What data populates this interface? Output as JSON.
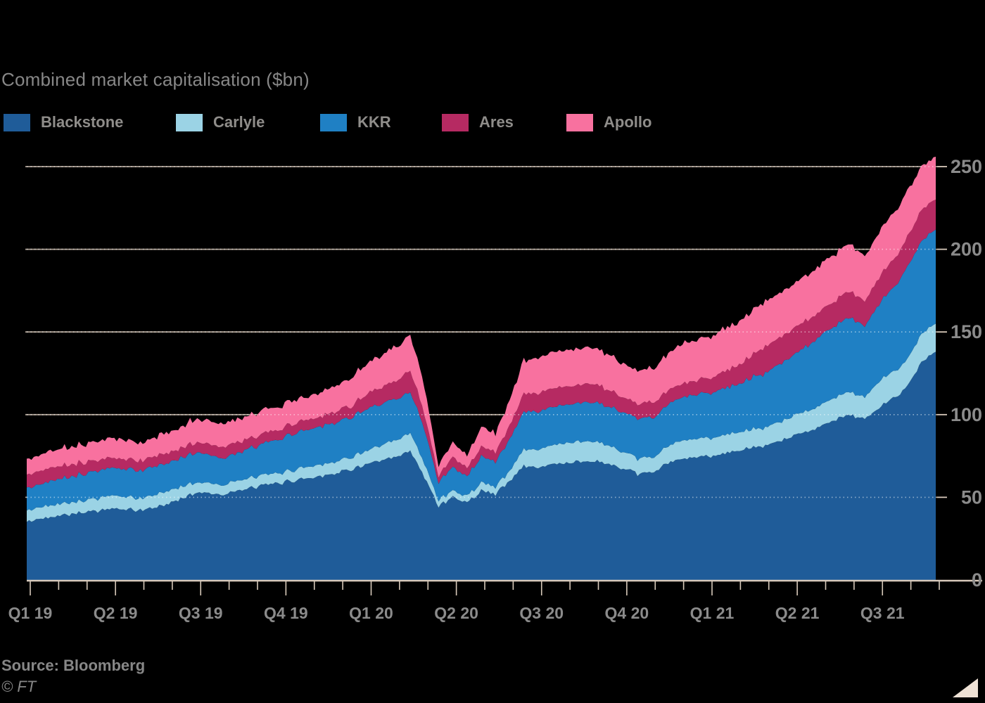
{
  "title": "Combined market capitalisation ($bn)",
  "source": "Source: Bloomberg",
  "copyright": "© FT",
  "colors": {
    "background": "#000000",
    "title_text": "#878787",
    "legend_text": "#8f8d8a",
    "axis_text": "#8b8b8b",
    "tick_line": "#d8cabb",
    "gridline_under": "#cfc0b1",
    "gridline_over_dotted": "rgba(255,255,255,0.5)",
    "corner_mark": "#efe2d6"
  },
  "legend": {
    "position": "top",
    "items": [
      {
        "label": "Blackstone",
        "color": "#1f5c99"
      },
      {
        "label": "Carlyle",
        "color": "#9bd3e5"
      },
      {
        "label": "KKR",
        "color": "#1f80c4"
      },
      {
        "label": "Ares",
        "color": "#b62a62"
      },
      {
        "label": "Apollo",
        "color": "#f8719f"
      }
    ]
  },
  "chart_data": {
    "type": "area",
    "stacked": true,
    "title": "Combined market capitalisation ($bn)",
    "xlabel": "",
    "ylabel": "$bn",
    "grid": "horizontal",
    "legend_position": "top",
    "x_unit": "half-months from Jan 2019 (t = index * 0.5 months, Jan 2019 to Sep 2021)",
    "x_tick_labels": [
      "Q1 19",
      "Q2 19",
      "Q3 19",
      "Q4 19",
      "Q1 20",
      "Q2 20",
      "Q3 20",
      "Q4 20",
      "Q1 21",
      "Q2 21",
      "Q3 21"
    ],
    "months_span": 32,
    "minor_ticks": "monthly",
    "y_ticks": [
      0,
      50,
      100,
      150,
      200,
      250
    ],
    "ylim": [
      0,
      265
    ],
    "jitter_amplitude": [
      1.6,
      0.5,
      0.9,
      0.7,
      1.4
    ],
    "series": [
      {
        "name": "Blackstone",
        "color": "#1f5c99",
        "values": [
          35,
          37,
          39,
          40,
          41,
          42,
          43,
          42.5,
          42,
          44,
          46,
          50,
          53,
          52.5,
          52,
          54,
          56,
          57.5,
          59,
          60.5,
          62,
          63.5,
          65,
          67.5,
          70,
          72,
          74,
          78,
          62,
          45,
          50,
          47,
          54,
          52,
          60,
          69,
          68,
          70,
          71,
          71.5,
          72,
          70,
          67,
          64,
          65,
          70,
          73,
          74,
          75,
          76.5,
          78,
          79.5,
          81,
          84,
          87,
          90,
          94,
          97,
          100,
          97,
          104,
          110,
          117,
          132,
          138
        ]
      },
      {
        "name": "Carlyle",
        "color": "#9bd3e5",
        "values": [
          7,
          7,
          7,
          7,
          7,
          7.5,
          8,
          7.5,
          7,
          7.5,
          8,
          7,
          6,
          6,
          6,
          6,
          6,
          6,
          6,
          6.5,
          7,
          7,
          7,
          7.5,
          8,
          9,
          10,
          11,
          8,
          3.5,
          4,
          4,
          5,
          4.5,
          6,
          10,
          11,
          11.5,
          12,
          12,
          12,
          11,
          10,
          9.5,
          9,
          10,
          11,
          11,
          11,
          11,
          11,
          11,
          11,
          11.5,
          12,
          12.5,
          13,
          13.5,
          14,
          13,
          16,
          16,
          16,
          17,
          17
        ]
      },
      {
        "name": "KKR",
        "color": "#1f80c4",
        "values": [
          14,
          14,
          15,
          15.5,
          16,
          16.5,
          17,
          17,
          17,
          17,
          17,
          17.5,
          18,
          17,
          16,
          17,
          18,
          19.5,
          21,
          22,
          23,
          23.5,
          24,
          24.5,
          25,
          25,
          25,
          25,
          21,
          11,
          14,
          12,
          16,
          15,
          19,
          23,
          23,
          23,
          23,
          23.5,
          24,
          24,
          24,
          24,
          24,
          25,
          26,
          26.5,
          27,
          28,
          29,
          31,
          33,
          35,
          37,
          39.5,
          42,
          43.5,
          45,
          43,
          47,
          51,
          56,
          56,
          57
        ]
      },
      {
        "name": "Ares",
        "color": "#b62a62",
        "values": [
          8,
          8,
          8,
          7.5,
          7,
          6.5,
          6,
          6,
          6,
          6,
          6,
          6,
          6,
          6.5,
          7,
          6.5,
          6,
          6,
          6,
          6,
          6,
          6,
          7,
          7,
          9,
          10,
          11,
          13,
          9,
          4,
          6,
          5,
          6,
          6,
          8,
          11,
          11,
          11,
          11,
          11,
          11,
          10,
          9,
          9,
          9,
          8.5,
          8,
          8.5,
          9,
          10,
          11,
          13.5,
          16,
          16,
          16,
          15.5,
          15,
          15.5,
          16,
          15,
          16,
          17,
          18,
          19,
          18
        ]
      },
      {
        "name": "Apollo",
        "color": "#f8719f",
        "values": [
          9,
          10,
          10,
          10.5,
          11,
          11.5,
          12,
          11.5,
          11,
          11.5,
          12,
          13,
          14,
          14,
          14,
          14,
          14,
          14,
          14,
          14,
          14,
          15,
          16,
          17,
          18,
          19.5,
          21,
          21,
          17,
          6,
          9,
          8,
          12,
          11,
          16,
          20,
          21,
          21.5,
          22,
          22,
          22,
          21,
          20,
          20,
          20,
          22,
          24,
          24.5,
          25,
          25.5,
          26,
          26.5,
          27,
          27,
          27,
          27.5,
          28,
          28.5,
          29,
          27,
          28,
          28,
          28,
          26,
          26
        ]
      }
    ]
  }
}
